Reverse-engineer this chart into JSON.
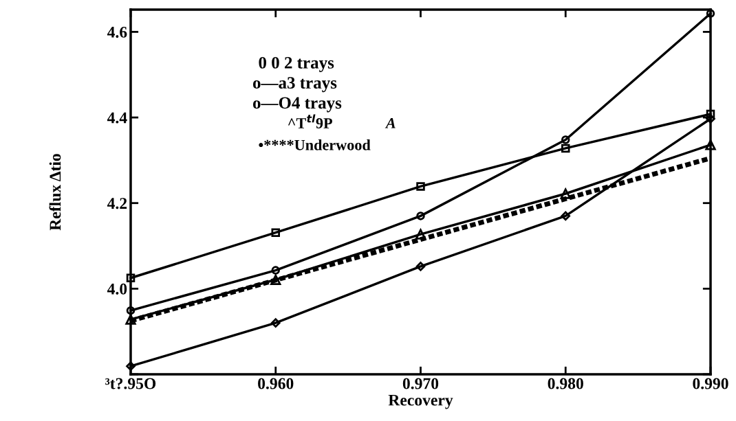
{
  "chart_data": {
    "type": "line",
    "xlabel": "Recovery",
    "ylabel": "Reflux Δtio",
    "x": [
      0.95,
      0.96,
      0.97,
      0.98,
      0.99
    ],
    "series": [
      {
        "color": "#000000",
        "marker": "circle",
        "line_style": "solid",
        "values": [
          3.949,
          4.043,
          4.17,
          4.348,
          4.643
        ]
      },
      {
        "color": "#000000",
        "marker": "square",
        "line_style": "solid",
        "values": [
          4.025,
          4.131,
          4.239,
          4.328,
          4.408
        ]
      },
      {
        "color": "#000000",
        "marker": "triangle",
        "line_style": "solid",
        "values": [
          3.928,
          4.021,
          4.127,
          4.222,
          4.336
        ]
      },
      {
        "color": "#000000",
        "marker": "diamond",
        "line_style": "solid",
        "values": [
          3.819,
          3.92,
          4.052,
          4.17,
          4.397
        ]
      },
      {
        "color": "#000000",
        "marker": "none",
        "line_style": "dashed",
        "values": [
          3.925,
          4.02,
          4.115,
          4.21,
          4.305
        ]
      }
    ],
    "xlim": [
      0.95,
      0.99
    ],
    "ylim": [
      3.8,
      4.652
    ],
    "xticks": [
      {
        "value": 0.95,
        "label": "³t?.95O"
      },
      {
        "value": 0.96,
        "label": "0.960"
      },
      {
        "value": 0.97,
        "label": "0.970"
      },
      {
        "value": 0.98,
        "label": "0.980"
      },
      {
        "value": 0.99,
        "label": "0.990"
      }
    ],
    "yticks": [
      {
        "value": 3.8,
        "label": null
      },
      {
        "value": 4.0,
        "label": "4.0"
      },
      {
        "value": 4.2,
        "label": "4.2"
      },
      {
        "value": 4.4,
        "label": "4.4"
      },
      {
        "value": 4.6,
        "label": "4.6"
      }
    ],
    "annotations": [
      "0 0 2 trays",
      "o—a3 trays",
      "o—O4 trays",
      "^T$^{tl}$9P",
      "A",
      "•****Underwood"
    ],
    "grid": false,
    "legend": false
  }
}
